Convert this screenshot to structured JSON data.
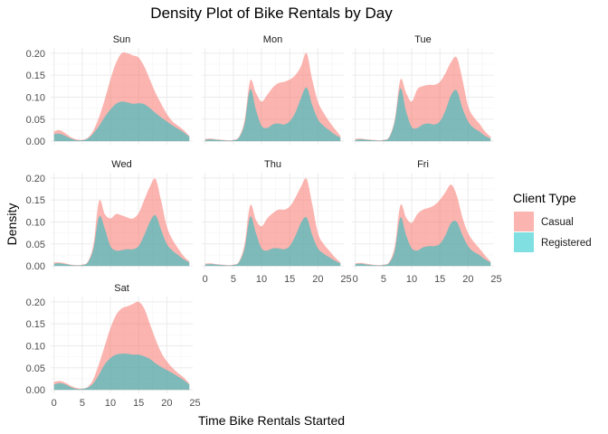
{
  "chart_data": {
    "type": "area",
    "title": "Density Plot of Bike Rentals by Day",
    "xlabel": "Time Bike Rentals Started",
    "ylabel": "Density",
    "xlim": [
      0,
      24
    ],
    "ylim": [
      0,
      0.21
    ],
    "x_ticks": [
      "0",
      "5",
      "10",
      "15",
      "20",
      "25"
    ],
    "y_ticks": [
      "0.00",
      "0.05",
      "0.10",
      "0.15",
      "0.20"
    ],
    "grid": true,
    "stacked": true,
    "legend": {
      "title": "Client Type",
      "position": "right",
      "entries": [
        {
          "name": "Casual",
          "color": "#F8766D"
        },
        {
          "name": "Registered",
          "color": "#00BFC4"
        }
      ]
    },
    "x": [
      0,
      1,
      2,
      3,
      4,
      5,
      6,
      7,
      8,
      9,
      10,
      11,
      12,
      13,
      14,
      15,
      16,
      17,
      18,
      19,
      20,
      21,
      22,
      23,
      24
    ],
    "panels": [
      {
        "label": "Sun",
        "registered": [
          0.016,
          0.017,
          0.012,
          0.006,
          0.002,
          0.002,
          0.006,
          0.018,
          0.035,
          0.055,
          0.072,
          0.085,
          0.09,
          0.088,
          0.085,
          0.086,
          0.084,
          0.075,
          0.064,
          0.054,
          0.045,
          0.036,
          0.028,
          0.02,
          0.01
        ],
        "total": [
          0.022,
          0.025,
          0.018,
          0.009,
          0.004,
          0.003,
          0.008,
          0.025,
          0.055,
          0.095,
          0.14,
          0.178,
          0.2,
          0.2,
          0.195,
          0.19,
          0.17,
          0.14,
          0.11,
          0.085,
          0.062,
          0.045,
          0.035,
          0.025,
          0.012
        ]
      },
      {
        "label": "Mon",
        "registered": [
          0.003,
          0.004,
          0.003,
          0.002,
          0.001,
          0.002,
          0.008,
          0.04,
          0.118,
          0.072,
          0.035,
          0.03,
          0.038,
          0.04,
          0.038,
          0.045,
          0.065,
          0.098,
          0.122,
          0.082,
          0.05,
          0.035,
          0.025,
          0.015,
          0.008
        ],
        "total": [
          0.005,
          0.006,
          0.004,
          0.003,
          0.002,
          0.003,
          0.01,
          0.048,
          0.138,
          0.11,
          0.09,
          0.105,
          0.122,
          0.132,
          0.135,
          0.14,
          0.15,
          0.17,
          0.2,
          0.14,
          0.09,
          0.065,
          0.045,
          0.028,
          0.012
        ]
      },
      {
        "label": "Tue",
        "registered": [
          0.003,
          0.004,
          0.003,
          0.002,
          0.001,
          0.002,
          0.008,
          0.045,
          0.12,
          0.068,
          0.032,
          0.03,
          0.038,
          0.04,
          0.038,
          0.045,
          0.07,
          0.105,
          0.115,
          0.075,
          0.045,
          0.03,
          0.022,
          0.012,
          0.006
        ],
        "total": [
          0.005,
          0.006,
          0.004,
          0.003,
          0.002,
          0.003,
          0.01,
          0.05,
          0.14,
          0.11,
          0.09,
          0.118,
          0.125,
          0.128,
          0.128,
          0.135,
          0.155,
          0.18,
          0.19,
          0.14,
          0.08,
          0.055,
          0.04,
          0.022,
          0.01
        ]
      },
      {
        "label": "Wed",
        "registered": [
          0.005,
          0.006,
          0.004,
          0.002,
          0.001,
          0.002,
          0.008,
          0.04,
          0.112,
          0.085,
          0.045,
          0.035,
          0.036,
          0.038,
          0.038,
          0.045,
          0.07,
          0.1,
          0.115,
          0.082,
          0.05,
          0.035,
          0.025,
          0.015,
          0.008
        ],
        "total": [
          0.008,
          0.008,
          0.006,
          0.003,
          0.002,
          0.003,
          0.01,
          0.05,
          0.148,
          0.118,
          0.108,
          0.118,
          0.115,
          0.11,
          0.108,
          0.12,
          0.15,
          0.18,
          0.198,
          0.148,
          0.09,
          0.06,
          0.04,
          0.022,
          0.01
        ]
      },
      {
        "label": "Thu",
        "registered": [
          0.003,
          0.004,
          0.003,
          0.002,
          0.001,
          0.002,
          0.008,
          0.04,
          0.112,
          0.075,
          0.04,
          0.035,
          0.04,
          0.04,
          0.038,
          0.045,
          0.068,
          0.098,
          0.11,
          0.07,
          0.04,
          0.028,
          0.02,
          0.012,
          0.006
        ],
        "total": [
          0.005,
          0.006,
          0.004,
          0.003,
          0.002,
          0.003,
          0.01,
          0.05,
          0.138,
          0.105,
          0.09,
          0.108,
          0.12,
          0.128,
          0.128,
          0.135,
          0.155,
          0.18,
          0.198,
          0.14,
          0.075,
          0.05,
          0.035,
          0.02,
          0.008
        ]
      },
      {
        "label": "Fri",
        "registered": [
          0.004,
          0.005,
          0.003,
          0.002,
          0.001,
          0.002,
          0.007,
          0.035,
          0.11,
          0.07,
          0.04,
          0.035,
          0.042,
          0.045,
          0.045,
          0.05,
          0.07,
          0.098,
          0.1,
          0.07,
          0.045,
          0.032,
          0.025,
          0.015,
          0.008
        ],
        "total": [
          0.006,
          0.007,
          0.005,
          0.003,
          0.002,
          0.003,
          0.009,
          0.045,
          0.138,
          0.11,
          0.098,
          0.118,
          0.128,
          0.132,
          0.138,
          0.15,
          0.168,
          0.185,
          0.16,
          0.11,
          0.075,
          0.055,
          0.04,
          0.024,
          0.01
        ]
      },
      {
        "label": "Sat",
        "registered": [
          0.012,
          0.015,
          0.012,
          0.006,
          0.002,
          0.002,
          0.005,
          0.015,
          0.035,
          0.058,
          0.072,
          0.08,
          0.082,
          0.082,
          0.08,
          0.08,
          0.076,
          0.07,
          0.06,
          0.052,
          0.045,
          0.038,
          0.03,
          0.022,
          0.012
        ],
        "total": [
          0.018,
          0.02,
          0.016,
          0.009,
          0.004,
          0.003,
          0.007,
          0.025,
          0.06,
          0.1,
          0.14,
          0.17,
          0.185,
          0.19,
          0.195,
          0.2,
          0.185,
          0.15,
          0.115,
          0.085,
          0.065,
          0.05,
          0.038,
          0.028,
          0.014
        ]
      }
    ]
  }
}
